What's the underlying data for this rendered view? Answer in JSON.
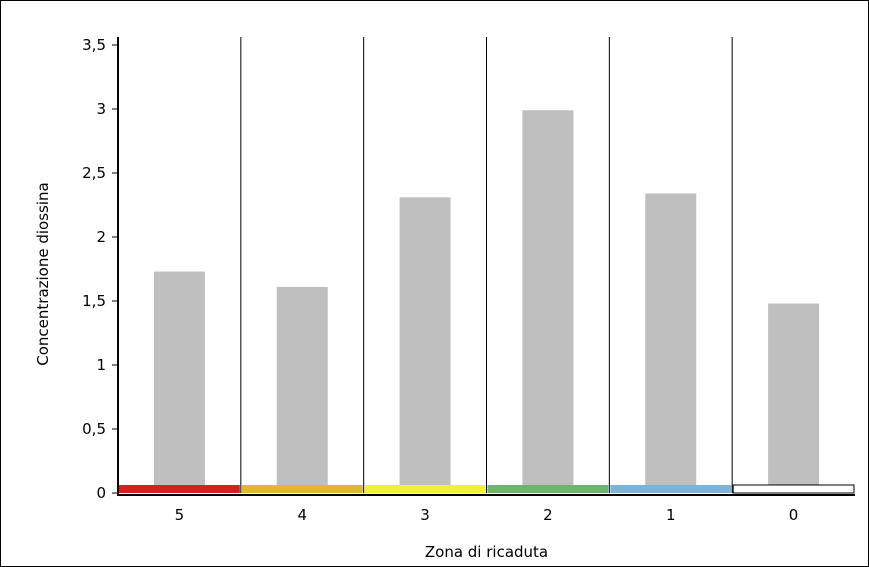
{
  "chart_data": {
    "type": "bar",
    "title": "",
    "xlabel": "Zona di ricaduta",
    "ylabel": "Concentrazione diossina",
    "categories": [
      "5",
      "4",
      "3",
      "2",
      "1",
      "0"
    ],
    "values": [
      1.73,
      1.61,
      2.31,
      2.99,
      2.34,
      1.48
    ],
    "ylim": [
      0,
      3.5
    ],
    "yticks": [
      {
        "value": 0,
        "label": "0"
      },
      {
        "value": 0.5,
        "label": "0,5"
      },
      {
        "value": 1,
        "label": "1"
      },
      {
        "value": 1.5,
        "label": "1,5"
      },
      {
        "value": 2,
        "label": "2"
      },
      {
        "value": 2.5,
        "label": "2,5"
      },
      {
        "value": 3,
        "label": "3"
      },
      {
        "value": 3.5,
        "label": "3,5"
      }
    ],
    "grid": false,
    "bar_color": "#bfbfbf",
    "zone_colors": [
      "#d42020",
      "#e0b830",
      "#f0f038",
      "#6fb36f",
      "#7fb2d8",
      "#ffffff"
    ]
  }
}
